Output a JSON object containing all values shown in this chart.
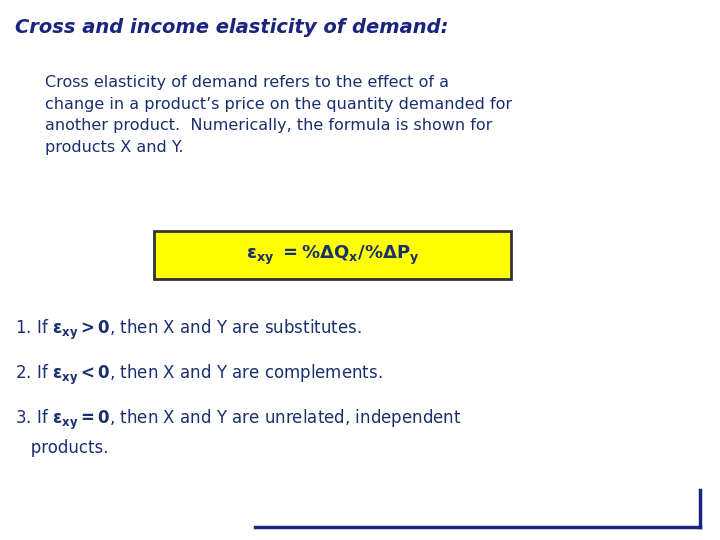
{
  "background_color": "#ffffff",
  "title": "Cross and income elasticity of demand:",
  "title_color": "#1a237e",
  "title_fontsize": 14,
  "body_color": "#1a2f6e",
  "body_fontsize": 11.5,
  "paragraph": "Cross elasticity of demand refers to the effect of a\nchange in a product’s price on the quantity demanded for\nanother product.  Numerically, the formula is shown for\nproducts X and Y.",
  "formula_box_color": "#ffff00",
  "formula_box_edge": "#333333",
  "formula_fontsize": 13,
  "bullet_fontsize": 12,
  "bottom_line_color": "#1a237e",
  "right_line_color": "#1a237e"
}
